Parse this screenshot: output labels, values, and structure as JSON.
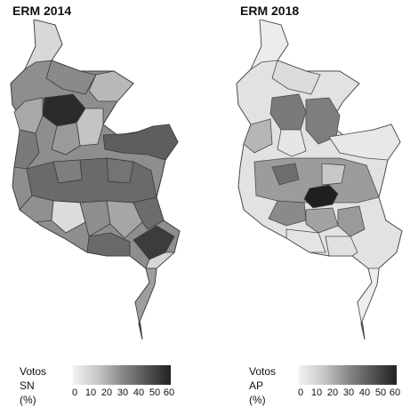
{
  "panels": [
    {
      "title": "ERM 2014",
      "legend": {
        "title_line1": "Votos",
        "title_line2": "SN (%)",
        "ticks": [
          "0",
          "10",
          "20",
          "30",
          "40",
          "50",
          "60"
        ]
      },
      "colors": {
        "base": "#8e8e8e",
        "dark": "#2b2b2b",
        "light": "#d8d8d8",
        "mid": "#6e6e6e",
        "border": "#3a3a3a"
      }
    },
    {
      "title": "ERM 2018",
      "legend": {
        "title_line1": "Votos",
        "title_line2": "AP (%)",
        "ticks": [
          "0",
          "10",
          "20",
          "30",
          "40",
          "50",
          "60"
        ]
      },
      "colors": {
        "base": "#e2e2e2",
        "dark": "#1f1f1f",
        "light": "#f0f0f0",
        "mid": "#9a9a9a",
        "border": "#4a4a4a"
      }
    }
  ]
}
